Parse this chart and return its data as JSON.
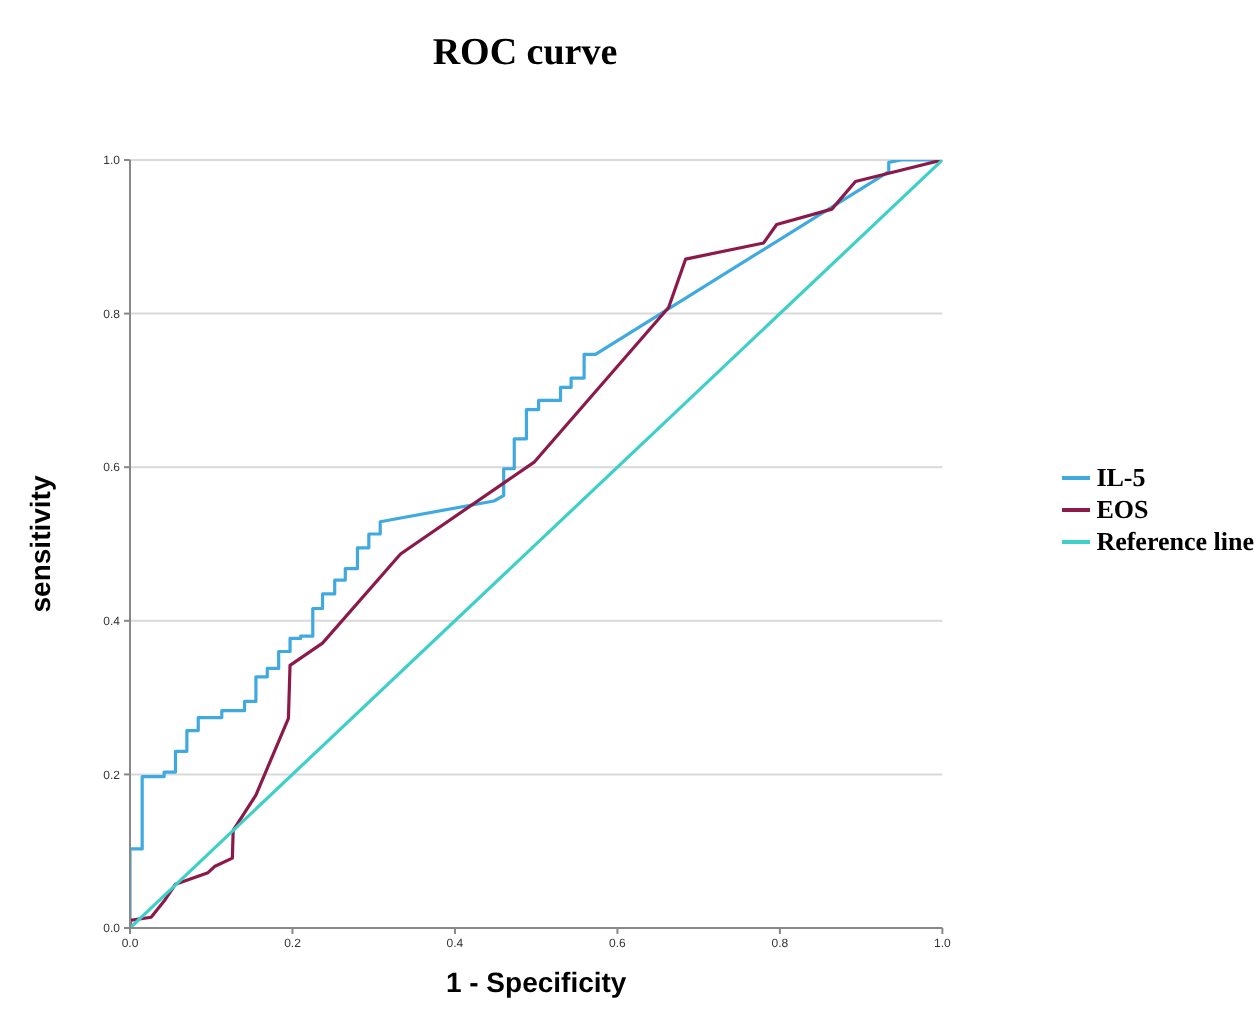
{
  "chart_data": {
    "type": "line",
    "title": "ROC curve",
    "xlabel": "1 - Specificity",
    "ylabel": "sensitivity",
    "xlim": [
      0,
      1
    ],
    "ylim": [
      0,
      1
    ],
    "xticks": [
      {
        "value": 0,
        "label": "0.0"
      },
      {
        "value": 0.2,
        "label": "0.2"
      },
      {
        "value": 0.4,
        "label": "0.4"
      },
      {
        "value": 0.6,
        "label": "0.6"
      },
      {
        "value": 0.8,
        "label": "0.8"
      },
      {
        "value": 1,
        "label": "1.0"
      }
    ],
    "yticks": [
      {
        "value": 0,
        "label": "0.0"
      },
      {
        "value": 0.2,
        "label": "0.2"
      },
      {
        "value": 0.4,
        "label": "0.4"
      },
      {
        "value": 0.6,
        "label": "0.6"
      },
      {
        "value": 0.8,
        "label": "0.8"
      },
      {
        "value": 1,
        "label": "1.0"
      }
    ],
    "grid": "y",
    "legend": "right",
    "marker": "none",
    "line_style": "solid",
    "series": [
      {
        "name": "IL-5",
        "color": "#3fa9e0",
        "x": [
          0,
          0,
          0.015,
          0.015,
          0.042,
          0.042,
          0.056,
          0.056,
          0.07,
          0.07,
          0.084,
          0.084,
          0.113,
          0.113,
          0.141,
          0.141,
          0.155,
          0.155,
          0.169,
          0.169,
          0.183,
          0.183,
          0.197,
          0.197,
          0.21,
          0.21,
          0.225,
          0.225,
          0.237,
          0.237,
          0.252,
          0.252,
          0.265,
          0.265,
          0.28,
          0.28,
          0.294,
          0.294,
          0.308,
          0.308,
          0.448,
          0.46,
          0.46,
          0.473,
          0.473,
          0.488,
          0.488,
          0.503,
          0.503,
          0.53,
          0.53,
          0.543,
          0.543,
          0.559,
          0.559,
          0.573,
          0.934,
          0.934,
          0.949,
          1
        ],
        "values": [
          0,
          0.103,
          0.103,
          0.197,
          0.197,
          0.203,
          0.203,
          0.23,
          0.23,
          0.257,
          0.257,
          0.274,
          0.274,
          0.283,
          0.283,
          0.295,
          0.295,
          0.327,
          0.327,
          0.338,
          0.338,
          0.36,
          0.36,
          0.377,
          0.377,
          0.38,
          0.38,
          0.416,
          0.416,
          0.435,
          0.435,
          0.453,
          0.453,
          0.468,
          0.468,
          0.495,
          0.495,
          0.513,
          0.513,
          0.529,
          0.556,
          0.563,
          0.598,
          0.598,
          0.637,
          0.637,
          0.675,
          0.675,
          0.687,
          0.687,
          0.704,
          0.704,
          0.716,
          0.716,
          0.747,
          0.747,
          0.985,
          0.997,
          1,
          1
        ]
      },
      {
        "name": "EOS",
        "color": "#8b1a4a",
        "x": [
          0,
          0,
          0.026,
          0.042,
          0.056,
          0.096,
          0.104,
          0.126,
          0.127,
          0.155,
          0.195,
          0.197,
          0.237,
          0.333,
          0.498,
          0.663,
          0.684,
          0.78,
          0.796,
          0.864,
          0.893,
          1
        ],
        "values": [
          0,
          0.01,
          0.014,
          0.035,
          0.057,
          0.072,
          0.08,
          0.091,
          0.127,
          0.173,
          0.273,
          0.342,
          0.371,
          0.487,
          0.607,
          0.808,
          0.871,
          0.892,
          0.916,
          0.936,
          0.972,
          1
        ]
      },
      {
        "name": "Reference line",
        "color": "#3ecfc9",
        "x": [
          0,
          1
        ],
        "values": [
          0,
          1
        ]
      }
    ]
  }
}
